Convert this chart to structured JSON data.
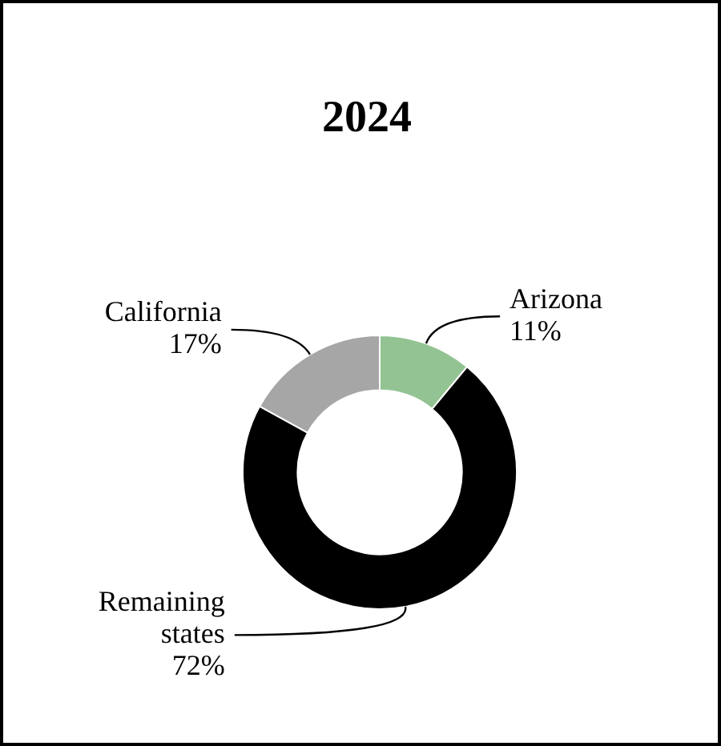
{
  "chart_data": {
    "type": "donut",
    "title": "2024",
    "categories": [
      "Arizona",
      "Remaining states",
      "California"
    ],
    "values": [
      11,
      72,
      17
    ],
    "value_labels": [
      "11%",
      "72%",
      "17%"
    ],
    "colors": [
      "#93c393",
      "#000000",
      "#a6a6a6"
    ],
    "legend": false
  }
}
